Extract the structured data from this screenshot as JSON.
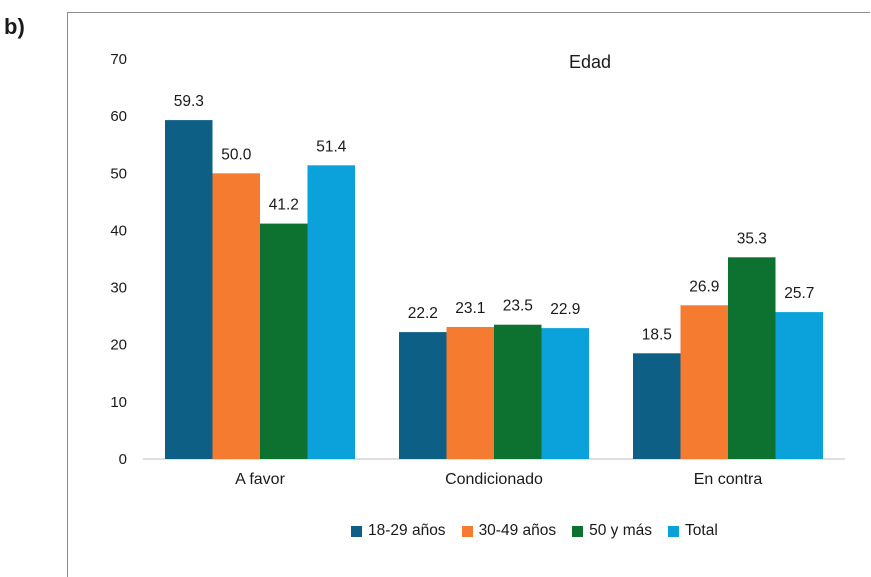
{
  "panel_label": "b)",
  "chart_data": {
    "type": "bar",
    "title": "Edad",
    "categories": [
      "A favor",
      "Condicionado",
      "En contra"
    ],
    "series": [
      {
        "name": "18-29 años",
        "color": "#0e5f85",
        "values": [
          59.3,
          22.2,
          18.5
        ],
        "labels": [
          "59.3",
          "22.2",
          "18.5"
        ]
      },
      {
        "name": "30-49 años",
        "color": "#f57b30",
        "values": [
          50.0,
          23.1,
          26.9
        ],
        "labels": [
          "50.0",
          "23.1",
          "26.9"
        ]
      },
      {
        "name": "50 y más",
        "color": "#0d7130",
        "values": [
          41.2,
          23.5,
          35.3
        ],
        "labels": [
          "41.2",
          "23.5",
          "35.3"
        ]
      },
      {
        "name": "Total",
        "color": "#0ba2dc",
        "values": [
          51.4,
          22.9,
          25.7
        ],
        "labels": [
          "51.4",
          "22.9",
          "25.7"
        ]
      }
    ],
    "yticks": [
      "0",
      "10",
      "20",
      "30",
      "40",
      "50",
      "60",
      "70"
    ],
    "ylim": [
      0,
      70
    ],
    "grid": false,
    "legend_position": "bottom"
  }
}
